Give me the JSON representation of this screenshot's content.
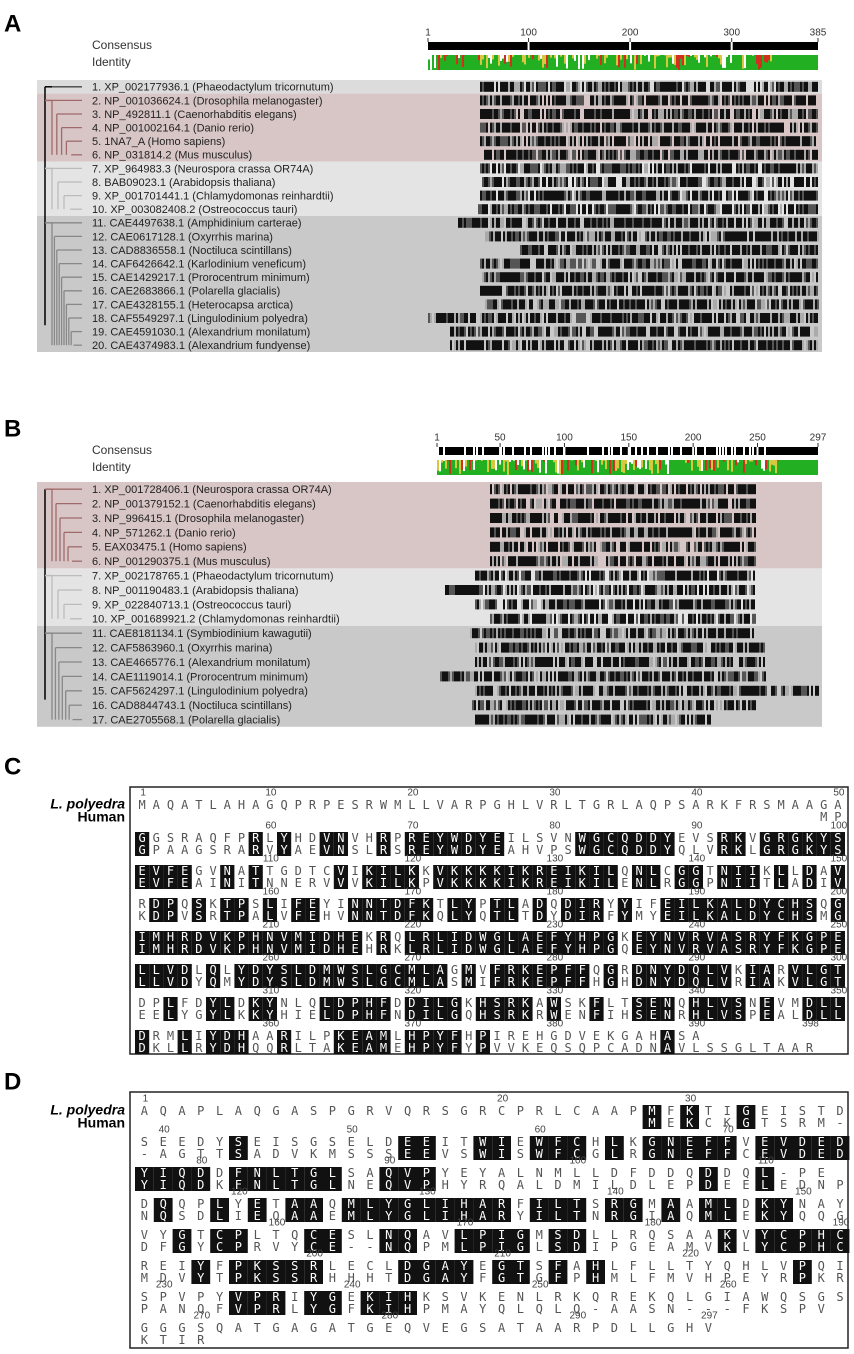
{
  "panels": [
    {
      "letter": "A",
      "consensus_label": "Consensus",
      "identity_label": "Identity",
      "ruler_ticks": [
        1,
        100,
        200,
        300,
        385
      ],
      "sequences": [
        "1. XP_002177936.1 (Phaeodactylum tricornutum)",
        "2. NP_001036624.1 (Drosophila melanogaster)",
        "3. NP_492811.1 (Caenorhabditis elegans)",
        "4. NP_001002164.1 (Danio rerio)",
        "5. 1NA7_A (Homo sapiens)",
        "6. NP_031814.2 (Mus musculus)",
        "7. XP_964983.3 (Neurospora crassa OR74A)",
        "8. BAB09023.1 (Arabidopsis thaliana)",
        "9. XP_001701441.1 (Chlamydomonas reinhardtii)",
        "10. XP_003082408.2 (Ostreococcus tauri)",
        "11. CAE4497638.1 (Amphidinium carterae)",
        "12. CAE0617128.1 (Oxyrrhis marina)",
        "13. CAD8836558.1 (Noctiluca scintillans)",
        "14. CAF6426642.1 (Karlodinium veneficum)",
        "15. CAE1429217.1 (Prorocentrum minimum)",
        "16. CAE2683866.1 (Polarella glacialis)",
        "17. CAE4328155.1 (Heterocapsa arctica)",
        "18. CAF5549297.1 (Lingulodinium polyedra)",
        "19. CAE4591030.1 (Alexandrium monilatum)",
        "20. CAE4374983.1 (Alexandrium fundyense)"
      ]
    },
    {
      "letter": "B",
      "consensus_label": "Consensus",
      "identity_label": "Identity",
      "ruler_ticks": [
        1,
        50,
        100,
        150,
        200,
        250,
        297
      ],
      "sequences": [
        "1. XP_001728406.1 (Neurospora crassa OR74A)",
        "2. NP_001379152.1 (Caenorhabditis elegans)",
        "3. NP_996415.1 (Drosophila melanogaster)",
        "4. NP_571262.1 (Danio rerio)",
        "5. EAX03475.1 (Homo sapiens)",
        "6. NP_001290375.1 (Mus musculus)",
        "7. XP_002178765.1 (Phaeodactylum tricornutum)",
        "8. NP_001190483.1 (Arabidopsis thaliana)",
        "9. XP_022840713.1 (Ostreococcus tauri)",
        "10. XP_001689921.2 (Chlamydomonas reinhardtii)",
        "11. CAE8181134.1 (Symbiodinium kawagutii)",
        "12. CAF5863960.1 (Oxyrrhis marina)",
        "13. CAE4665776.1 (Alexandrium monilatum)",
        "14. CAE1119014.1 (Prorocentrum minimum)",
        "15. CAF5624297.1 (Lingulodinium polyedra)",
        "16. CAD8844743.1 (Noctiluca scintillans)",
        "17. CAE2705568.1 (Polarella glacialis)"
      ]
    }
  ],
  "alignments": [
    {
      "letter": "C",
      "species": [
        "L. polyedra",
        "Human"
      ],
      "blocks": [
        {
          "numbers": [
            1,
            10,
            20,
            30,
            40,
            50
          ],
          "seq1": "MAQATLAHAGQPRPESRWMLLVARPGHLVRLTGRLAQPSARKFRSMAAGA",
          "seq2": "                                                MP"
        },
        {
          "numbers": [
            60,
            70,
            80,
            90,
            100
          ],
          "seq1": "GGSRAQFPRLYHDVNVHRPREYWDYEILSVNWGCQDDYEVSRKVGRGKYS",
          "seq2": "GPAAGSRARVYAEVNSLRSREYWDYEAHVPSWGCQDDYQLVRKLGRGKYS"
        },
        {
          "numbers": [
            110,
            120,
            130,
            140,
            150
          ],
          "seq1": "EVFEGVNATTGDTCVIKILKKVKKKKIKREIKILQNLCGGTNIIKLLDAV",
          "seq2": "EVFEAINITNNERVVVKILKPVKKKKIKREIKILENLRGGPNIITLADIV"
        },
        {
          "numbers": [
            160,
            170,
            180,
            190,
            200
          ],
          "seq1": "RDPQSKTPSLIFEYINNTDFKTLYPTLADQDIRYYIFEILKALDYCHSQG",
          "seq2": "KDPVSRTPALVFEHVNNTDFKQLYQTLTDYDIRFYMYEILKALDYCHSMG"
        },
        {
          "numbers": [
            210,
            220,
            230,
            240,
            250
          ],
          "seq1": "IMHRDVKPHNVMIDHEKRQLRLIDWGLAEFYHPGKEYNVRVASRYFKGPE",
          "seq2": "IMHRDVKPHNVMIDHEHRKLRLIDWGLAEFYHPGQEYNVRVASRYFKGPE"
        },
        {
          "numbers": [
            260,
            270,
            280,
            290,
            300
          ],
          "seq1": "LLVDLQLYDYSLDMWSLGCMLAGMVFRKEPFFQGRDNYDQLVKIARVLGT",
          "seq2": "LLVDYQMYDYSLDMWSLGCMLASMIFRKEPFFHGHDNYDQLVRIAKVLGT"
        },
        {
          "numbers": [
            310,
            320,
            330,
            340,
            350
          ],
          "seq1": "DPLFDYLDKYNLQLDPHFDDILGKHSRKAWSKFLTSENQHLVSNEVMDLL",
          "seq2": "EELYGYLKKYHIELDPHFNDILGQHSRKRWENFIHSENRHLVSPEALDLL"
        },
        {
          "numbers": [
            360,
            370,
            380,
            390,
            398
          ],
          "seq1": "DRMLIYDHAARILPKEAMLHPYFHPIREHGDVEKGAHASA",
          "seq2": "DKLLRYDHQQRLTAKEAMEHPYFYPVVKEQSQPCADNAVLSSGLTAAR"
        }
      ]
    },
    {
      "letter": "D",
      "species": [
        "L. polyedra",
        "Human"
      ],
      "blocks": [
        {
          "numbers": [
            1,
            20,
            30
          ],
          "seq1": "AQAPLAQGASPGRVQRSGRCPRLCAAPMFKTIGEISTD",
          "seq2": "                           MEKCKGTSRM-"
        },
        {
          "numbers": [
            40,
            50,
            60,
            70
          ],
          "seq1": "SEEDYSEISGSELDEEITWIEWFCHLKGNEFFVEVDED",
          "seq2": "-AGTTSADVKMSSSEEVSWISWFCGLRGNEFFCEVDED"
        },
        {
          "numbers": [
            80,
            90,
            100,
            110
          ],
          "seq1": "YIQDDFNLTGLSAQVPYEYALNMLLDFDDQDDQL-PE",
          "seq2": "YIQDKFNLTGLNEQVPHYRQALDMILDLEPDEELEDNP"
        },
        {
          "numbers": [
            120,
            130,
            140,
            150
          ],
          "seq1": "DQQPLYETAAQMLYGLIHARFILTSRGMAAMLDKYNAY",
          "seq2": "NQSDLIEQAAEMLYGLIHARYILTNRGIAQMLEKYQQG"
        },
        {
          "numbers": [
            160,
            170,
            180,
            190
          ],
          "seq1": "VYGTCPLTQCESLNQAVLPIGMSDLLRQSAAKVYCPHC",
          "seq2": "DFGYCPRVYCE--NQPMLPIGLSDIPGEAMVKLYCPHC"
        },
        {
          "numbers": [
            200,
            210,
            220
          ],
          "seq1": "REIYFPKSSRLECLDGAYEGTSFAHLFLLTYQHLVPQI",
          "seq2": "MDVYTPKSSRHHHTDGAYFGTGFPHMLFMVHPEYRPKR"
        },
        {
          "numbers": [
            230,
            240,
            250,
            260
          ],
          "seq1": "SPVPYVPRIYGEKIHKSVKENLRKQREKQLGIAWQSGS",
          "seq2": "PANQFVPRLYGFKIHPMAYQLQLQ-AASN---FKSPV"
        },
        {
          "numbers": [
            270,
            280,
            290,
            297
          ],
          "seq1": "GGGSQATGAGATGEQVEGSATAARPDLLGHV",
          "seq2": "KTIR"
        }
      ]
    }
  ]
}
